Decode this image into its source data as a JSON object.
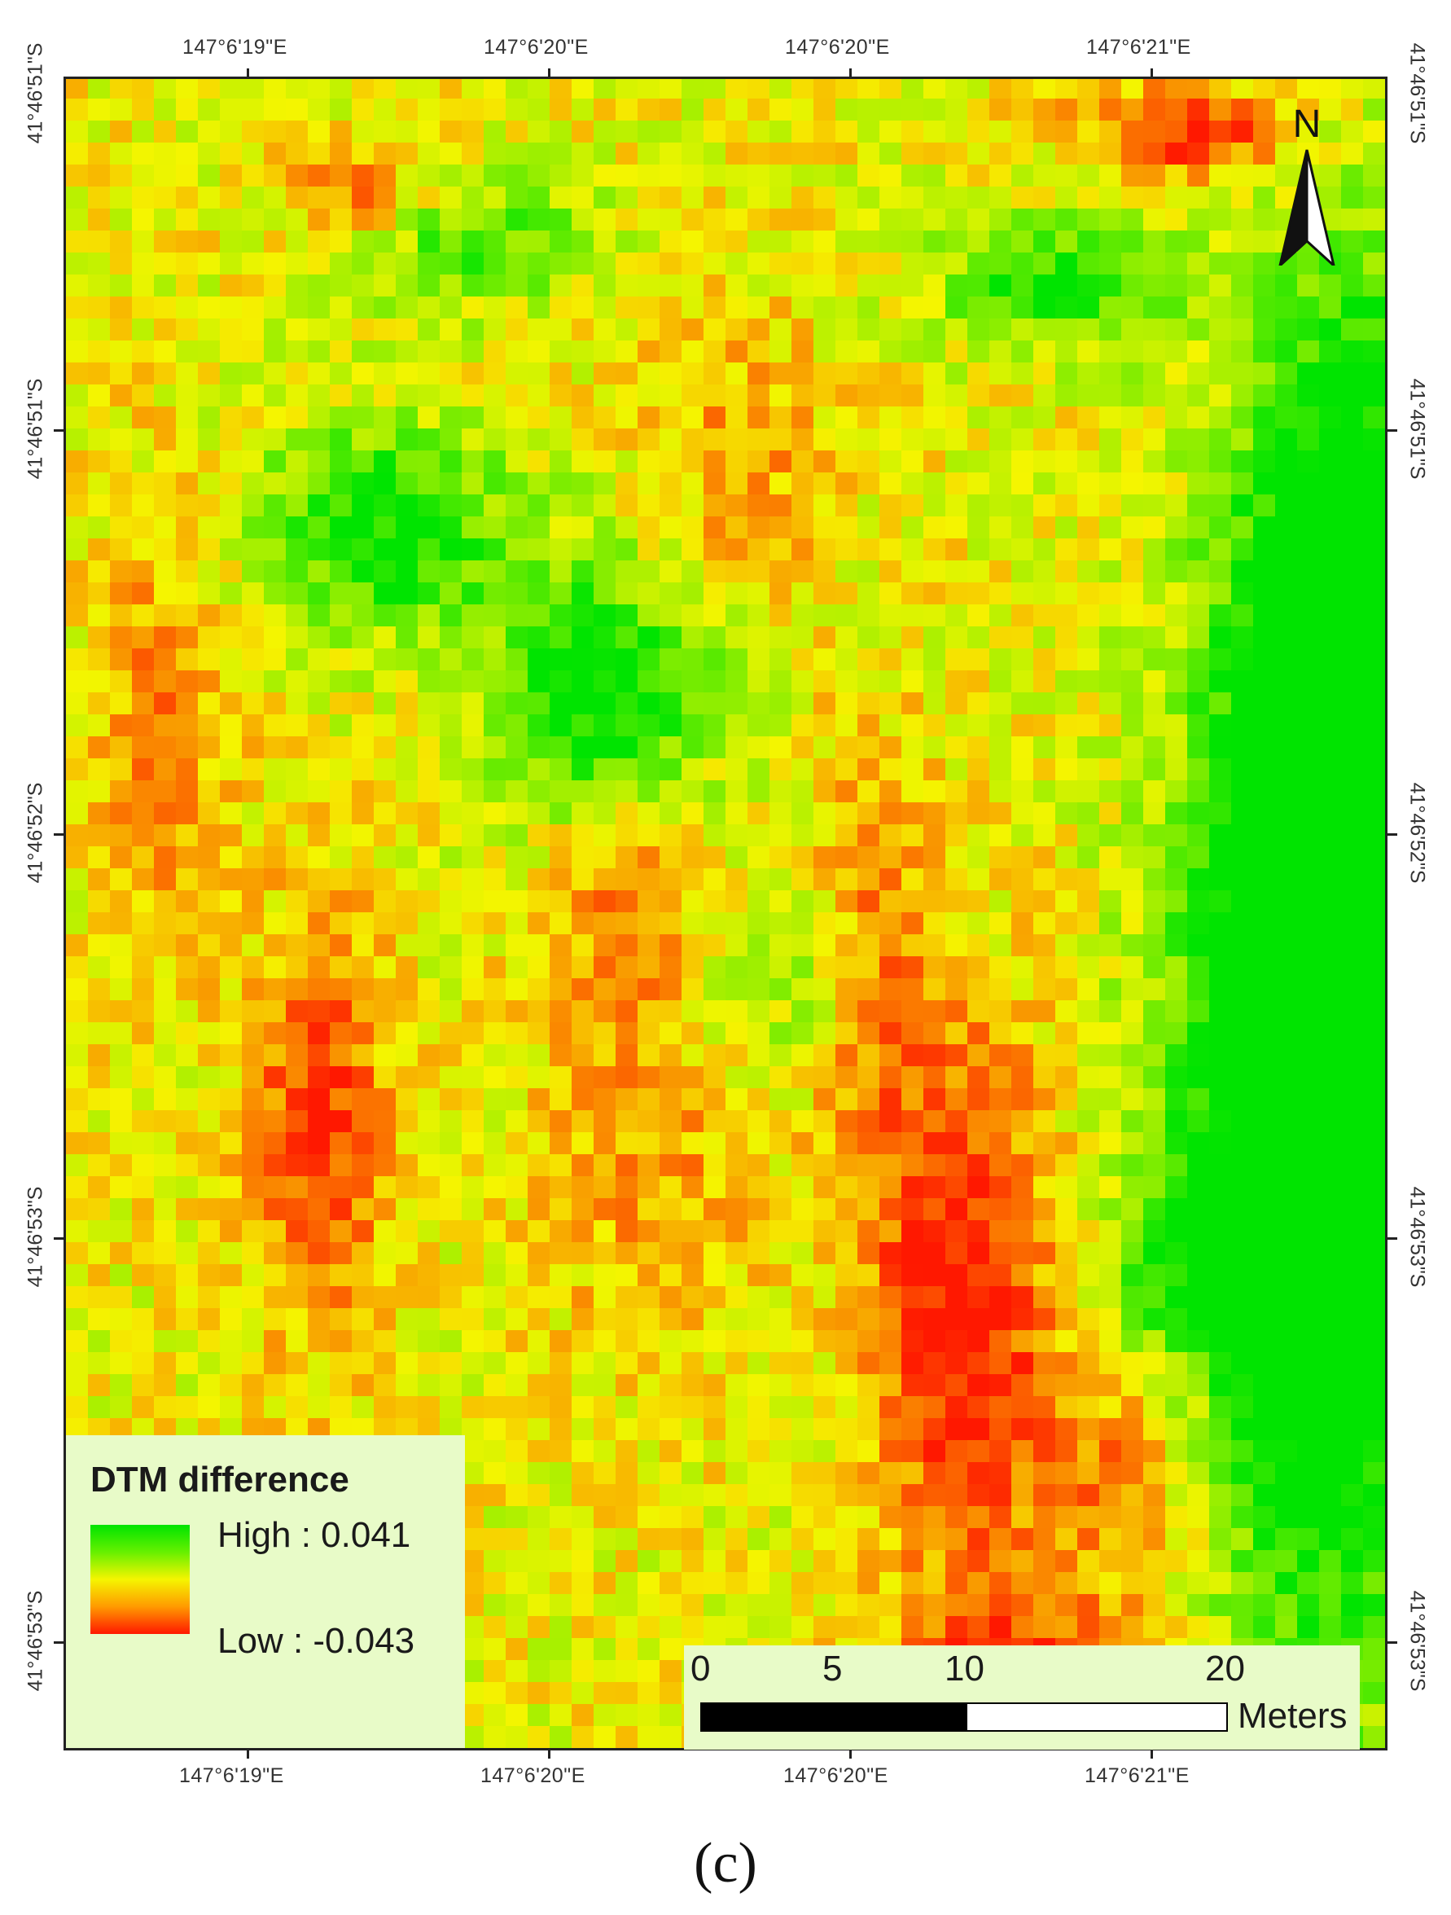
{
  "map": {
    "top_lon_labels": [
      "147°6'19\"E",
      "147°6'20\"E",
      "147°6'20\"E",
      "147°6'21\"E"
    ],
    "bottom_lon_labels": [
      "147°6'19\"E",
      "147°6'20\"E",
      "147°6'20\"E",
      "147°6'21\"E"
    ],
    "left_lat_labels": [
      "41°46'51\"S",
      "41°46'51\"S",
      "41°46'52\"S",
      "41°46'53\"S",
      "41°46'53\"S"
    ],
    "right_lat_labels": [
      "41°46'51\"S",
      "41°46'51\"S",
      "41°46'52\"S",
      "41°46'53\"S",
      "41°46'53\"S"
    ],
    "north_label": "N",
    "colors": {
      "high": "#00e400",
      "mid": "#f5f500",
      "low": "#ff1800"
    }
  },
  "legend": {
    "title": "DTM difference",
    "high": "High : 0.041",
    "low": "Low : -0.043"
  },
  "scalebar": {
    "ticks": [
      "0",
      "5",
      "10",
      "20"
    ],
    "units": "Meters"
  },
  "panel_label": "(c)"
}
